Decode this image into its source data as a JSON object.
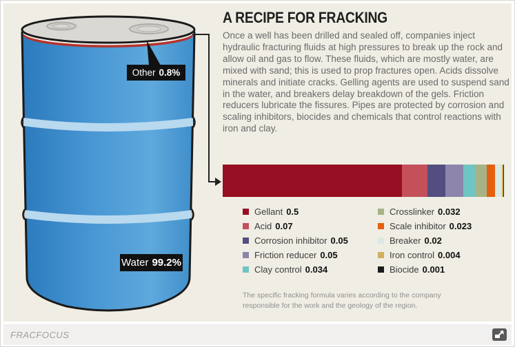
{
  "header": {
    "title": "A RECIPE FOR FRACKING"
  },
  "intro": {
    "text": "Once a well has been drilled and sealed off, companies inject hydraulic fracturing fluids at high pressures to break up the rock and allow oil and gas to flow. These fluids, which are mostly water, are mixed with sand; this is used to prop fractures open. Acids dissolve minerals and initiate cracks. Gelling agents are used to suspend sand in the water, and breakers delay breakdown of the gels. Friction reducers lubricate the fissures. Pipes are protected by corrosion and scaling inhibitors, biocides and chemicals that control reactions with iron and clay."
  },
  "barrel": {
    "other_label": "Other",
    "other_value": "0.8%",
    "water_label": "Water",
    "water_value": "99.2%"
  },
  "chart_data": {
    "type": "bar",
    "orientation": "horizontal-stacked",
    "title": "Composition of the non-water fraction of fracking fluid",
    "legend_position": "below, two columns",
    "legend_split": 5,
    "total": 0.784,
    "series": [
      {
        "name": "Gellant",
        "value": 0.5,
        "display": "0.5",
        "color": "#970f23"
      },
      {
        "name": "Acid",
        "value": 0.07,
        "display": "0.07",
        "color": "#c4505a"
      },
      {
        "name": "Corrosion inhibitor",
        "value": 0.05,
        "display": "0.05",
        "color": "#534e80"
      },
      {
        "name": "Friction reducer",
        "value": 0.05,
        "display": "0.05",
        "color": "#8d85ab"
      },
      {
        "name": "Clay control",
        "value": 0.034,
        "display": "0.034",
        "color": "#6fc5c2"
      },
      {
        "name": "Crosslinker",
        "value": 0.032,
        "display": "0.032",
        "color": "#a6b485"
      },
      {
        "name": "Scale inhibitor",
        "value": 0.023,
        "display": "0.023",
        "color": "#e4600f"
      },
      {
        "name": "Breaker",
        "value": 0.02,
        "display": "0.02",
        "color": "#d9e8e0"
      },
      {
        "name": "Iron control",
        "value": 0.004,
        "display": "0.004",
        "color": "#cfb05c"
      },
      {
        "name": "Biocide",
        "value": 0.001,
        "display": "0.001",
        "color": "#1a1a1a"
      }
    ]
  },
  "footnote": {
    "text": "The specific fracking formula varies according to the company responsible for the work and the geology of the region."
  },
  "footer": {
    "brand": "FRACFOCUS"
  },
  "colors": {
    "background": "#f0ede4",
    "footer_bg": "#f1f0ee",
    "label_bg": "#111111",
    "barrel_blue": "#4596d2",
    "lid_gray": "#d9d8d2",
    "other_stripe_red": "#b5342c",
    "connector": "#222222"
  }
}
